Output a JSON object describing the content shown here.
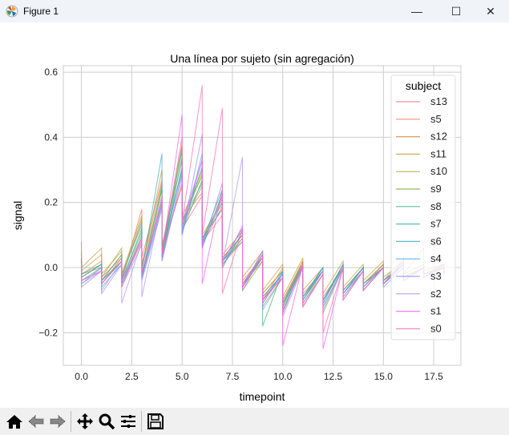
{
  "window": {
    "title": "Figure 1",
    "minimize": "—",
    "maximize": "☐",
    "close": "✕"
  },
  "toolbar": {
    "icons": [
      "home-icon",
      "back-icon",
      "forward-icon",
      "pan-icon",
      "zoom-icon",
      "configure-subplots-icon",
      "save-icon"
    ]
  },
  "chart_data": {
    "type": "line",
    "title": "Una línea por sujeto (sin agregación)",
    "xlabel": "timepoint",
    "ylabel": "signal",
    "xlim": [
      -0.9,
      18.85
    ],
    "ylim": [
      -0.3,
      0.62
    ],
    "xticks": [
      "0.0",
      "2.5",
      "5.0",
      "7.5",
      "10.0",
      "12.5",
      "15.0",
      "17.5"
    ],
    "xtick_values": [
      0,
      2.5,
      5,
      7.5,
      10,
      12.5,
      15,
      17.5
    ],
    "yticks": [
      "−0.2",
      "0.0",
      "0.2",
      "0.4",
      "0.6"
    ],
    "ytick_values": [
      -0.2,
      0,
      0.2,
      0.4,
      0.6
    ],
    "grid": true,
    "legend": {
      "title": "subject",
      "placement": "upper-right"
    },
    "x": [
      0,
      1,
      2,
      3,
      4,
      5,
      6,
      7,
      8,
      9,
      10,
      11,
      12,
      13,
      14,
      15,
      16,
      17,
      18
    ],
    "series": [
      {
        "name": "s13",
        "color": "#f77189",
        "a": [
          0.02,
          0.01,
          0.02,
          0.08,
          0.2,
          0.26,
          0.22,
          0.16,
          0.08,
          0.02,
          -0.02,
          0.01,
          -0.01,
          0.0,
          0.0,
          0.01,
          0.01,
          0.0,
          0.0
        ],
        "b": [
          -0.03,
          -0.04,
          -0.05,
          -0.02,
          0.04,
          0.12,
          0.08,
          0.01,
          -0.05,
          -0.09,
          -0.1,
          -0.08,
          -0.09,
          -0.07,
          -0.05,
          -0.04,
          -0.03,
          -0.02,
          -0.02
        ]
      },
      {
        "name": "s5",
        "color": "#f7754f",
        "a": [
          0.01,
          0.0,
          0.03,
          0.18,
          0.27,
          0.25,
          0.23,
          0.18,
          0.1,
          0.03,
          -0.01,
          0.02,
          0.0,
          0.01,
          0.0,
          0.0,
          0.01,
          0.0,
          0.01
        ],
        "b": [
          -0.02,
          -0.03,
          -0.04,
          0.03,
          0.06,
          0.15,
          0.09,
          0.03,
          -0.04,
          -0.08,
          -0.11,
          -0.09,
          -0.1,
          -0.08,
          -0.05,
          -0.04,
          -0.03,
          -0.02,
          -0.01
        ]
      },
      {
        "name": "s12",
        "color": "#dc8932",
        "a": [
          0.03,
          0.02,
          0.04,
          0.15,
          0.24,
          0.3,
          0.25,
          0.19,
          0.09,
          0.04,
          0.0,
          0.02,
          -0.01,
          0.01,
          0.0,
          0.01,
          0.02,
          0.0,
          0.0
        ],
        "b": [
          -0.02,
          -0.04,
          -0.03,
          0.0,
          0.05,
          0.13,
          0.07,
          0.02,
          -0.05,
          -0.1,
          -0.12,
          -0.1,
          -0.11,
          -0.08,
          -0.06,
          -0.05,
          -0.03,
          -0.02,
          -0.02
        ]
      },
      {
        "name": "s11",
        "color": "#c39532",
        "a": [
          0.08,
          0.06,
          0.05,
          0.13,
          0.3,
          0.33,
          0.28,
          0.2,
          0.11,
          0.05,
          0.01,
          0.03,
          0.0,
          0.02,
          0.01,
          0.02,
          0.02,
          0.01,
          0.01
        ],
        "b": [
          0.0,
          -0.02,
          -0.02,
          0.0,
          0.07,
          0.16,
          0.1,
          0.04,
          -0.03,
          -0.07,
          -0.09,
          -0.07,
          -0.08,
          -0.06,
          -0.04,
          -0.03,
          -0.02,
          -0.01,
          0.0
        ]
      },
      {
        "name": "s10",
        "color": "#ae9d31",
        "a": [
          0.05,
          0.04,
          0.06,
          0.16,
          0.26,
          0.38,
          0.3,
          0.21,
          0.1,
          0.03,
          -0.01,
          0.02,
          -0.01,
          0.01,
          0.0,
          0.01,
          0.03,
          0.06,
          0.0
        ],
        "b": [
          -0.01,
          -0.03,
          -0.02,
          0.01,
          0.06,
          0.14,
          0.09,
          0.03,
          -0.05,
          -0.08,
          -0.1,
          -0.09,
          -0.1,
          -0.07,
          -0.05,
          -0.04,
          -0.02,
          -0.02,
          -0.01
        ]
      },
      {
        "name": "s9",
        "color": "#77ab31",
        "a": [
          0.02,
          0.01,
          0.03,
          0.11,
          0.24,
          0.37,
          0.29,
          0.22,
          0.09,
          0.02,
          -0.03,
          0.0,
          -0.02,
          0.0,
          -0.01,
          0.0,
          0.01,
          0.0,
          0.0
        ],
        "b": [
          -0.03,
          -0.05,
          -0.04,
          -0.03,
          0.04,
          0.13,
          0.07,
          0.01,
          -0.07,
          -0.12,
          -0.13,
          -0.11,
          -0.14,
          -0.09,
          -0.07,
          -0.05,
          -0.04,
          -0.03,
          -0.02
        ]
      },
      {
        "name": "s8",
        "color": "#33b07a",
        "a": [
          0.01,
          0.0,
          0.02,
          0.1,
          0.21,
          0.34,
          0.27,
          0.24,
          0.12,
          0.04,
          -0.01,
          0.01,
          -0.01,
          0.0,
          0.0,
          0.0,
          0.01,
          0.0,
          0.0
        ],
        "b": [
          -0.04,
          -0.05,
          -0.05,
          -0.03,
          0.03,
          0.11,
          0.08,
          0.02,
          -0.06,
          -0.18,
          -0.12,
          -0.1,
          -0.12,
          -0.08,
          -0.06,
          -0.05,
          -0.04,
          -0.03,
          -0.02
        ]
      },
      {
        "name": "s7",
        "color": "#35ad9c",
        "a": [
          0.02,
          0.01,
          0.04,
          0.12,
          0.25,
          0.36,
          0.31,
          0.2,
          0.1,
          0.03,
          -0.02,
          0.01,
          0.0,
          0.01,
          0.0,
          0.0,
          0.01,
          0.0,
          0.0
        ],
        "b": [
          -0.03,
          -0.04,
          -0.04,
          -0.02,
          0.05,
          0.12,
          0.08,
          0.02,
          -0.06,
          -0.1,
          -0.11,
          -0.09,
          -0.1,
          -0.07,
          -0.05,
          -0.04,
          -0.03,
          -0.02,
          -0.02
        ]
      },
      {
        "name": "s6",
        "color": "#38a9c5",
        "a": [
          0.03,
          0.01,
          0.02,
          0.14,
          0.35,
          0.3,
          0.26,
          0.18,
          0.08,
          0.03,
          -0.02,
          0.0,
          -0.01,
          0.0,
          -0.01,
          0.0,
          0.01,
          0.0,
          0.0
        ],
        "b": [
          -0.02,
          -0.04,
          -0.03,
          -0.01,
          0.06,
          0.14,
          0.09,
          0.02,
          -0.05,
          -0.09,
          -0.11,
          -0.09,
          -0.1,
          -0.08,
          -0.05,
          -0.04,
          -0.03,
          -0.02,
          -0.02
        ]
      },
      {
        "name": "s4",
        "color": "#3ba3ec",
        "a": [
          0.02,
          0.0,
          0.01,
          0.09,
          0.19,
          0.31,
          0.35,
          0.23,
          0.11,
          0.05,
          -0.01,
          0.01,
          0.0,
          0.01,
          0.0,
          0.0,
          0.0,
          0.0,
          0.0
        ],
        "b": [
          -0.05,
          -0.06,
          -0.05,
          -0.03,
          0.03,
          0.1,
          0.06,
          0.0,
          -0.06,
          -0.11,
          -0.13,
          -0.1,
          -0.11,
          -0.08,
          -0.06,
          -0.05,
          -0.04,
          -0.03,
          -0.02
        ]
      },
      {
        "name": "s3",
        "color": "#8e8ff4",
        "a": [
          0.0,
          -0.01,
          0.01,
          0.07,
          0.18,
          0.29,
          0.41,
          0.26,
          0.13,
          0.04,
          -0.03,
          0.0,
          -0.02,
          0.0,
          -0.01,
          0.0,
          0.0,
          0.0,
          0.0
        ],
        "b": [
          -0.06,
          -0.08,
          -0.06,
          -0.04,
          0.02,
          0.1,
          0.06,
          0.0,
          -0.07,
          -0.13,
          -0.15,
          -0.12,
          -0.13,
          -0.09,
          -0.07,
          -0.06,
          -0.04,
          -0.03,
          -0.03
        ]
      },
      {
        "name": "s2",
        "color": "#b18af4",
        "a": [
          0.01,
          -0.01,
          0.02,
          0.08,
          0.2,
          0.28,
          0.33,
          0.22,
          0.34,
          0.05,
          -0.02,
          0.01,
          -0.01,
          0.0,
          -0.01,
          0.0,
          0.01,
          0.0,
          0.0
        ],
        "b": [
          -0.05,
          -0.07,
          -0.11,
          -0.09,
          0.02,
          0.11,
          0.07,
          0.01,
          -0.06,
          -0.11,
          -0.14,
          -0.11,
          -0.12,
          -0.08,
          -0.06,
          -0.05,
          -0.04,
          -0.03,
          -0.02
        ]
      },
      {
        "name": "s1",
        "color": "#f45cf2",
        "a": [
          0.01,
          -0.01,
          0.02,
          0.09,
          0.22,
          0.47,
          0.33,
          0.24,
          0.12,
          0.04,
          -0.03,
          0.01,
          -0.02,
          0.0,
          -0.01,
          0.0,
          0.02,
          0.0,
          0.01
        ],
        "b": [
          -0.04,
          -0.05,
          -0.04,
          -0.02,
          0.04,
          0.14,
          -0.05,
          0.02,
          -0.06,
          -0.1,
          -0.24,
          -0.12,
          -0.25,
          -0.1,
          -0.07,
          -0.05,
          -0.04,
          -0.03,
          -0.02
        ]
      },
      {
        "name": "s0",
        "color": "#f66bad",
        "a": [
          0.01,
          -0.01,
          0.02,
          0.09,
          0.2,
          0.4,
          0.56,
          0.49,
          0.12,
          0.04,
          -0.03,
          0.01,
          -0.02,
          0.0,
          -0.01,
          0.0,
          0.02,
          0.0,
          0.01
        ],
        "b": [
          -0.04,
          -0.05,
          -0.06,
          -0.02,
          0.04,
          0.14,
          0.1,
          -0.08,
          -0.06,
          -0.1,
          -0.14,
          -0.12,
          -0.2,
          -0.1,
          -0.07,
          -0.05,
          -0.04,
          -0.03,
          -0.02
        ]
      }
    ]
  }
}
